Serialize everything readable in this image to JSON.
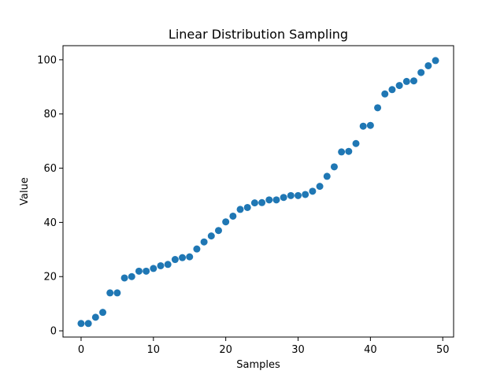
{
  "chart_data": {
    "type": "scatter",
    "title": "Linear Distribution Sampling",
    "xlabel": "Samples",
    "ylabel": "Value",
    "xlim": [
      -2.5,
      51.5
    ],
    "ylim": [
      -2.3,
      105.2
    ],
    "xticks": [
      0,
      10,
      20,
      30,
      40,
      50
    ],
    "yticks": [
      0,
      20,
      40,
      60,
      80,
      100
    ],
    "grid": false,
    "marker_color": "#1f77b4",
    "x": [
      0,
      1,
      2,
      3,
      4,
      5,
      6,
      7,
      8,
      9,
      10,
      11,
      12,
      13,
      14,
      15,
      16,
      17,
      18,
      19,
      20,
      21,
      22,
      23,
      24,
      25,
      26,
      27,
      28,
      29,
      30,
      31,
      32,
      33,
      34,
      35,
      36,
      37,
      38,
      39,
      40,
      41,
      42,
      43,
      44,
      45,
      46,
      47,
      48,
      49
    ],
    "y": [
      2.7,
      2.7,
      5.0,
      6.8,
      14.0,
      14.0,
      19.5,
      20.0,
      22.0,
      22.0,
      23.0,
      24.0,
      24.5,
      26.3,
      27.0,
      27.3,
      30.2,
      32.8,
      35.0,
      37.0,
      40.2,
      42.3,
      44.8,
      45.5,
      47.2,
      47.3,
      48.3,
      48.3,
      49.2,
      49.9,
      49.9,
      50.3,
      51.5,
      53.3,
      57.0,
      60.5,
      66.0,
      66.2,
      69.1,
      75.5,
      75.8,
      82.3,
      87.4,
      89.0,
      90.5,
      92.0,
      92.2,
      95.3,
      97.8,
      99.7
    ]
  }
}
